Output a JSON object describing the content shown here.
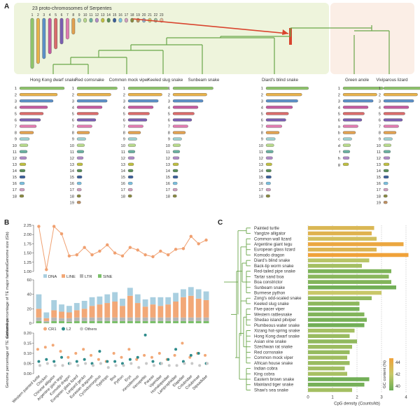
{
  "panels": {
    "a": "A",
    "b": "B",
    "c": "C"
  },
  "colors": {
    "panel_bg_green": "#eef4dc",
    "panel_bg_pink": "#fbeee6",
    "tree_green": "#6aa64a",
    "highlight_red": "#d9442e",
    "dna": "#a9cfe0",
    "line_te": "#f2a877",
    "ltr": "#b6b6b6",
    "sine": "#7bbf6a",
    "size_line": "#f0a070",
    "cr1": "#f2a877",
    "l2": "#2e8b8b",
    "others": "#c8c8c8",
    "gc_high": "#f0a23a",
    "gc_mid": "#c7c96a",
    "gc_low": "#6aad55"
  },
  "panel_a": {
    "title": "23 proto-chromosomes of Serpentes",
    "proto_numbers": [
      "1",
      "2",
      "3",
      "4",
      "5",
      "6",
      "7",
      "8",
      "9",
      "10",
      "11",
      "12",
      "13",
      "14",
      "15",
      "16",
      "17",
      "18",
      "19",
      "20",
      "21",
      "22",
      "23"
    ],
    "proto_colors": [
      "#8ec56a",
      "#e9b24a",
      "#5b8fc7",
      "#c45aa0",
      "#d96b6b",
      "#7a5fb0",
      "#e07bb0",
      "#e0a050",
      "#9ccfcf",
      "#b7d98a",
      "#6ab0a0",
      "#b08cc8",
      "#c0c040",
      "#5a8f5a",
      "#3a5f9a",
      "#7ac0e0",
      "#d0a0c0",
      "#8a8a40",
      "#c09060",
      "#90b0d0",
      "#d0d070",
      "#a0c0a0",
      "#e0c0a0"
    ],
    "species": [
      "Hong Kong dwarf snake",
      "Red cornsnake",
      "Common mock viper",
      "Keeled slug snake",
      "Sunbeam snake",
      "Diard's blind snake",
      "Green anole",
      "Viviparous lizard"
    ],
    "rows_hk": [
      "1",
      "2",
      "3",
      "4",
      "5",
      "6",
      "7",
      "8",
      "9",
      "10",
      "11",
      "12",
      "13",
      "14",
      "15",
      "16",
      "17",
      "18"
    ],
    "rows_rc": [
      "1",
      "2",
      "3",
      "4",
      "5",
      "6",
      "7",
      "8",
      "9",
      "10",
      "11",
      "12",
      "13",
      "14",
      "15",
      "16",
      "17",
      "18",
      "19"
    ],
    "rows_cmv": [
      "1",
      "2",
      "3",
      "4",
      "5",
      "6",
      "7",
      "8",
      "9",
      "10",
      "11",
      "12",
      "13",
      "14",
      "15",
      "16",
      "17",
      "18"
    ],
    "rows_ks": [
      "1",
      "2",
      "3",
      "4",
      "5",
      "6",
      "7",
      "8",
      "9",
      "10",
      "11",
      "12",
      "13",
      "14",
      "15",
      "16",
      "17",
      "18"
    ],
    "rows_db": [
      "1",
      "2",
      "3",
      "4",
      "5",
      "6",
      "7",
      "8",
      "9",
      "10",
      "11",
      "12",
      "13",
      "14",
      "15",
      "16",
      "17",
      "18"
    ],
    "rows_ga": [
      "1",
      "2",
      "3",
      "4",
      "5",
      "6",
      "a",
      "b",
      "c",
      "d",
      "f",
      "h",
      "g"
    ],
    "rows_vl": [
      "1",
      "2",
      "3",
      "4",
      "5",
      "6",
      "7",
      "8",
      "9",
      "10",
      "11",
      "12",
      "13",
      "14",
      "15",
      "16",
      "17",
      "18",
      "19"
    ]
  },
  "chart_data": [
    {
      "type": "line",
      "ylabel": "Genome size (Gb)",
      "yticks": [
        "1.00",
        "1.25",
        "1.50",
        "1.75",
        "2.00",
        "2.25"
      ],
      "ylim": [
        1.0,
        2.25
      ],
      "categories": [
        "Western painted turtle",
        "Chicken",
        "Chinese alligator",
        "Argentine giant tegu",
        "Komodo dragon",
        "European glass lizard",
        "Leopard gecko",
        "Eurasian dragonet",
        "Cyclodomorphus",
        "Typhlops",
        "Boa",
        "Python",
        "Eryx",
        "Xenodermus",
        "Xenopeltis",
        "Pareas",
        "Viperidae",
        "Homalopsidae",
        "Lamprophiidae",
        "Elapidae",
        "Colubridae",
        "Colubrinae",
        "Dipsadidae"
      ],
      "values": [
        2.22,
        1.05,
        2.22,
        2.02,
        1.42,
        1.45,
        1.65,
        1.45,
        1.55,
        1.72,
        1.5,
        1.42,
        1.65,
        1.58,
        1.45,
        1.4,
        1.55,
        1.45,
        1.6,
        1.62,
        1.95,
        1.75,
        1.85
      ]
    },
    {
      "type": "bar",
      "ylabel": "Genome percentage of TE major families",
      "yticks": [
        "0",
        "20",
        "40",
        "60"
      ],
      "ylim": [
        0,
        60
      ],
      "legend": [
        "DNA",
        "LINE",
        "LTR",
        "SINE"
      ],
      "categories": [
        "Western painted turtle",
        "Chicken",
        "Chinese alligator",
        "Argentine giant tegu",
        "Komodo dragon",
        "European glass lizard",
        "Leopard gecko",
        "Eurasian dragonet",
        "Cyclodomorphus",
        "Typhlops",
        "Boa",
        "Python",
        "Eryx",
        "Xenodermus",
        "Xenopeltis",
        "Pareas",
        "Viperidae",
        "Homalopsidae",
        "Lamprophiidae",
        "Elapidae",
        "Colubridae",
        "Colubrinae",
        "Dipsadidae"
      ],
      "series": [
        {
          "name": "SINE",
          "values": [
            3,
            1,
            3,
            3,
            2,
            3,
            3,
            3,
            3,
            3,
            3,
            3,
            3,
            3,
            3,
            3,
            3,
            3,
            3,
            3,
            3,
            3,
            3
          ]
        },
        {
          "name": "LTR",
          "values": [
            5,
            2,
            5,
            4,
            5,
            5,
            5,
            5,
            5,
            5,
            5,
            5,
            5,
            5,
            5,
            5,
            5,
            5,
            5,
            5,
            5,
            5,
            5
          ]
        },
        {
          "name": "LINE",
          "values": [
            12,
            4,
            10,
            9,
            8,
            10,
            12,
            16,
            18,
            20,
            22,
            16,
            30,
            20,
            15,
            18,
            16,
            18,
            22,
            28,
            30,
            26,
            24
          ]
        },
        {
          "name": "DNA",
          "values": [
            20,
            8,
            14,
            10,
            9,
            10,
            11,
            12,
            11,
            12,
            13,
            10,
            11,
            12,
            10,
            10,
            12,
            10,
            12,
            11,
            12,
            13,
            12
          ]
        }
      ]
    },
    {
      "type": "scatter",
      "ylabel": "Genome percentage of TE subfamilies",
      "yticks": [
        "0.00",
        "0.05",
        "0.10",
        "0.15",
        "0.20"
      ],
      "ylim": [
        0,
        0.2
      ],
      "legend": [
        "CR1",
        "L2",
        "Others"
      ],
      "categories": [
        "Western painted turtle",
        "Chicken",
        "Chinese alligator",
        "Argentine giant tegu",
        "Komodo dragon",
        "European glass lizard",
        "Leopard gecko",
        "Eurasian dragonet",
        "Cyclodomorphus",
        "Typhlops",
        "Boa",
        "Python",
        "Eryx",
        "Xenodermus",
        "Xenopeltis",
        "Pareas",
        "Viperidae",
        "Homalopsidae",
        "Lamprophiidae",
        "Elapidae",
        "Colubridae",
        "Colubrinae",
        "Dipsadidae"
      ],
      "series": [
        {
          "name": "CR1",
          "values": [
            0.12,
            0.13,
            0.14,
            0.11,
            0.08,
            0.1,
            0.12,
            0.09,
            0.07,
            0.06,
            0.1,
            0.08,
            0.12,
            0.07,
            0.09,
            0.08,
            0.1,
            0.07,
            0.09,
            0.15,
            0.08,
            0.1,
            0.09
          ]
        },
        {
          "name": "L2",
          "values": [
            0.06,
            0.07,
            0.06,
            0.08,
            0.05,
            0.06,
            0.07,
            0.05,
            0.11,
            0.06,
            0.06,
            0.05,
            0.07,
            0.08,
            0.19,
            0.06,
            0.05,
            0.07,
            0.12,
            0.06,
            0.09,
            0.1,
            0.05
          ]
        },
        {
          "name": "Others",
          "values": [
            0.04,
            0.05,
            0.04,
            0.04,
            0.05,
            0.04,
            0.05,
            0.04,
            0.05,
            0.03,
            0.04,
            0.04,
            0.05,
            0.03,
            0.05,
            0.04,
            0.05,
            0.04,
            0.04,
            0.05,
            0.05,
            0.04,
            0.05
          ]
        }
      ]
    },
    {
      "type": "bar",
      "orientation": "horizontal",
      "xlabel": "CpG density (Counts/kb)",
      "xticks": [
        "0",
        "1",
        "2",
        "3",
        "4"
      ],
      "xlim": [
        0,
        4
      ],
      "legend_title": "GC content (%)",
      "legend_ticks": [
        "44",
        "42",
        "40"
      ],
      "categories": [
        "Painted turtle",
        "Yangtze alligator",
        "Common wall lizard",
        "Argentine giant tegu",
        "European glass lizard",
        "Komodo dragon",
        "Diard's blind snake",
        "Back-tip worm snake",
        "Red-tailed pipe snake",
        "Tartar sand boa",
        "Boa constrictor",
        "Sunbeam snake",
        "Burmese python",
        "Zong's odd-scaled snake",
        "Keeled slug snake",
        "Five-pacer viper",
        "Western rattlesnake",
        "Shedao island pitviper",
        "Plumbeous water snake",
        "Xizang hot-spring snake",
        "Hong Kong dwarf snake",
        "Asian vine snake",
        "Szechwan rat snake",
        "Red cornsnake",
        "Common mock viper",
        "African house snake",
        "Indian cobra",
        "King cobra",
        "Eastern brown snake",
        "Mainland tiger snake",
        "Shaw's sea snake"
      ],
      "values": [
        2.7,
        2.6,
        2.8,
        3.9,
        2.8,
        4.1,
        2.5,
        2.2,
        3.4,
        3.3,
        3.4,
        3.6,
        3.0,
        2.6,
        2.1,
        2.1,
        2.3,
        2.4,
        2.3,
        1.9,
        1.7,
        2.0,
        1.8,
        1.7,
        1.6,
        1.7,
        1.5,
        1.6,
        2.5,
        2.3,
        1.8
      ],
      "gc": [
        43.5,
        43.8,
        43.0,
        44.5,
        43.6,
        44.8,
        42.0,
        41.5,
        40.5,
        40.8,
        40.6,
        40.2,
        42.5,
        41.0,
        40.9,
        40.3,
        40.6,
        40.4,
        40.2,
        41.5,
        41.2,
        41.0,
        41.3,
        41.1,
        41.4,
        41.2,
        41.4,
        41.6,
        40.2,
        40.3,
        41.5
      ]
    }
  ]
}
